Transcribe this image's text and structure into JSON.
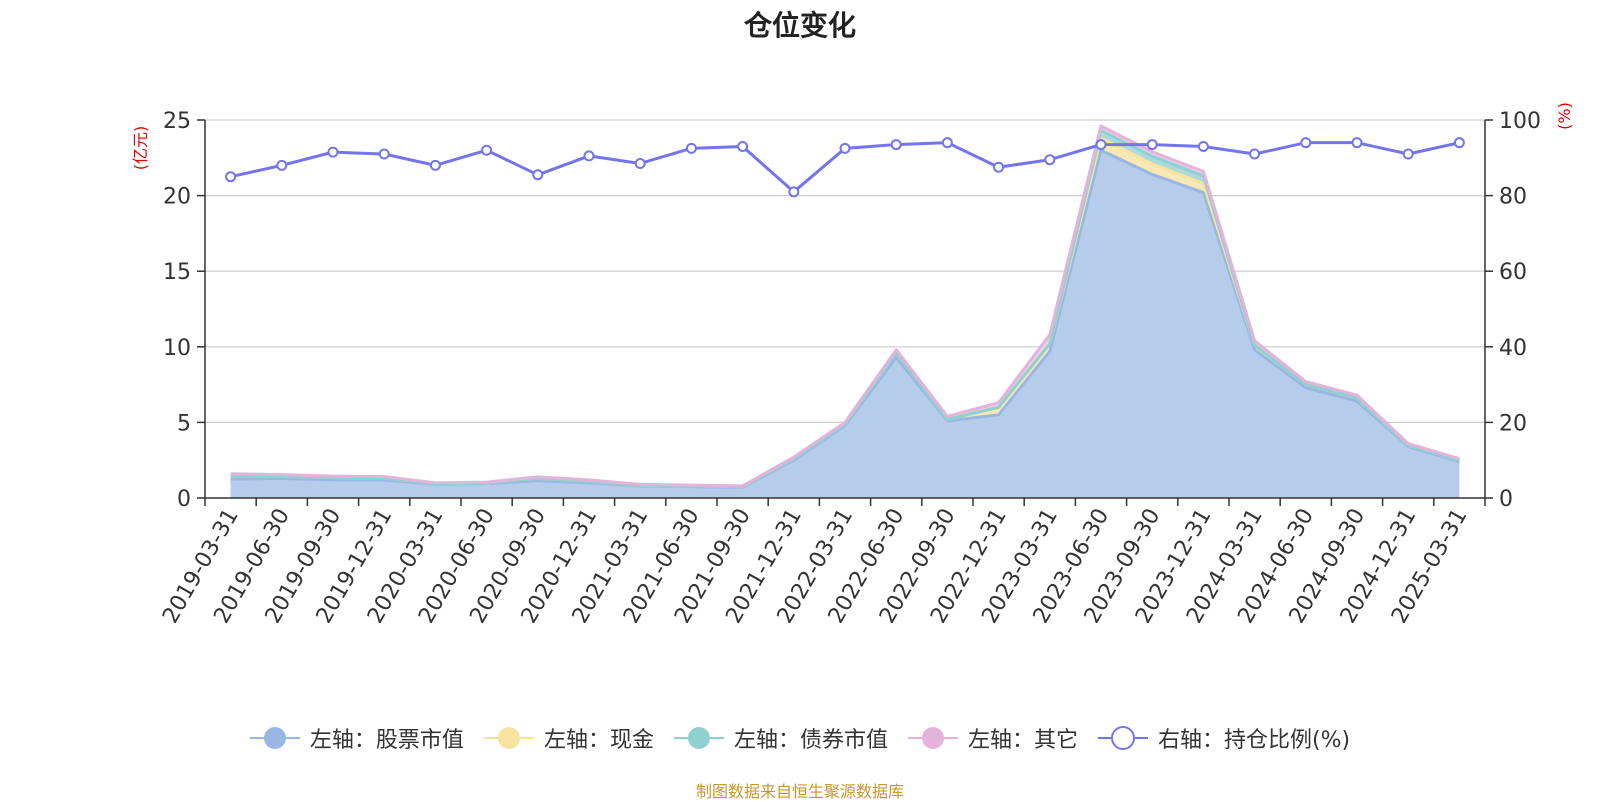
{
  "title": "仓位变化",
  "source": "制图数据来自恒生聚源数据库",
  "chart_data": {
    "type": "area",
    "title": "仓位变化",
    "categories": [
      "2019-03-31",
      "2019-06-30",
      "2019-09-30",
      "2019-12-31",
      "2020-03-31",
      "2020-06-30",
      "2020-09-30",
      "2020-12-31",
      "2021-03-31",
      "2021-06-30",
      "2021-09-30",
      "2021-12-31",
      "2022-03-31",
      "2022-06-30",
      "2022-09-30",
      "2022-12-31",
      "2023-03-31",
      "2023-06-30",
      "2023-09-30",
      "2023-12-31",
      "2024-03-31",
      "2024-06-30",
      "2024-09-30",
      "2024-12-31",
      "2025-03-31"
    ],
    "y_left": {
      "label": "(亿元)",
      "ticks": [
        "0",
        "5",
        "10",
        "15",
        "20",
        "25"
      ],
      "min": 0,
      "max": 25
    },
    "y_right": {
      "label": "(%)",
      "ticks": [
        "0",
        "20",
        "40",
        "60",
        "80",
        "100"
      ],
      "min": 0,
      "max": 100
    },
    "stacked": true,
    "series": [
      {
        "name": "左轴：股票市值",
        "axis": "left",
        "color": "#9ab6e2",
        "fill": "#b6cceb",
        "values": [
          1.25,
          1.3,
          1.2,
          1.2,
          0.9,
          0.95,
          1.15,
          1.0,
          0.8,
          0.75,
          0.7,
          2.5,
          4.8,
          9.3,
          5.1,
          5.5,
          9.7,
          23.0,
          21.4,
          20.2,
          9.8,
          7.3,
          6.4,
          3.4,
          2.4
        ]
      },
      {
        "name": "左轴：现金",
        "axis": "left",
        "color": "#f6e3a0",
        "fill": "#f8e9b4",
        "values": [
          0.2,
          0.15,
          0.15,
          0.12,
          0.05,
          0.05,
          0.15,
          0.1,
          0.05,
          0.05,
          0.05,
          0.1,
          0.1,
          0.3,
          0.1,
          0.5,
          0.5,
          0.8,
          0.7,
          0.6,
          0.3,
          0.2,
          0.2,
          0.1,
          0.1
        ]
      },
      {
        "name": "左轴：债券市值",
        "axis": "left",
        "color": "#8fd1d1",
        "fill": "#aadbd9",
        "values": [
          0,
          0,
          0,
          0,
          0,
          0,
          0,
          0,
          0,
          0,
          0,
          0,
          0,
          0,
          0,
          0,
          0,
          0.5,
          0.5,
          0.5,
          0,
          0,
          0,
          0,
          0
        ]
      },
      {
        "name": "左轴：其它",
        "axis": "left",
        "color": "#e4b3db",
        "fill": "#ead0e6",
        "values": [
          0.15,
          0.1,
          0.1,
          0.1,
          0.05,
          0.05,
          0.1,
          0.1,
          0.05,
          0.05,
          0.05,
          0.1,
          0.1,
          0.2,
          0.2,
          0.3,
          0.6,
          0.3,
          0.3,
          0.3,
          0.3,
          0.2,
          0.2,
          0.1,
          0.1
        ]
      },
      {
        "name": "右轴：持仓比例(%)",
        "axis": "right",
        "color": "#7474ee",
        "values": [
          85,
          88,
          91.5,
          91,
          88,
          92,
          85.5,
          90.5,
          88.5,
          92.5,
          93,
          81,
          92.5,
          93.5,
          94,
          87.5,
          89.5,
          93.5,
          93.5,
          93,
          91,
          94,
          94,
          91,
          94
        ]
      }
    ],
    "legend_position": "bottom",
    "grid": true
  }
}
